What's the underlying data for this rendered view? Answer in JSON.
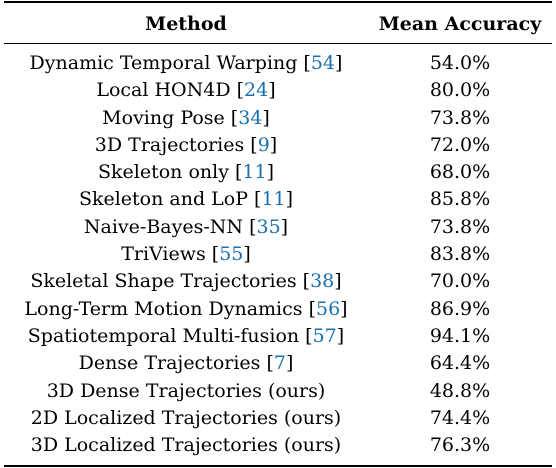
{
  "table": {
    "headers": {
      "method": "Method",
      "accuracy": "Mean Accuracy"
    },
    "rows": [
      {
        "method": "Dynamic Temporal Warping",
        "ref": "54",
        "accuracy": "54.0%"
      },
      {
        "method": "Local HON4D",
        "ref": "24",
        "accuracy": "80.0%"
      },
      {
        "method": "Moving Pose",
        "ref": "34",
        "accuracy": "73.8%"
      },
      {
        "method": "3D Trajectories",
        "ref": "9",
        "accuracy": "72.0%"
      },
      {
        "method": "Skeleton only",
        "ref": "11",
        "accuracy": "68.0%"
      },
      {
        "method": "Skeleton and LoP",
        "ref": "11",
        "accuracy": "85.8%"
      },
      {
        "method": "Naive-Bayes-NN",
        "ref": "35",
        "accuracy": "73.8%"
      },
      {
        "method": "TriViews",
        "ref": "55",
        "accuracy": "83.8%"
      },
      {
        "method": "Skeletal Shape Trajectories",
        "ref": "38",
        "accuracy": "70.0%"
      },
      {
        "method": "Long-Term Motion Dynamics",
        "ref": "56",
        "accuracy": "86.9%"
      },
      {
        "method": "Spatiotemporal Multi-fusion",
        "ref": "57",
        "accuracy": "94.1%"
      },
      {
        "method": "Dense Trajectories",
        "ref": "7",
        "accuracy": "64.4%"
      },
      {
        "method": "3D Dense Trajectories (ours)",
        "ref": "",
        "accuracy": "48.8%"
      },
      {
        "method": "2D Localized Trajectories (ours)",
        "ref": "",
        "accuracy": "74.4%"
      },
      {
        "method": "3D Localized Trajectories (ours)",
        "ref": "",
        "accuracy": "76.3%"
      }
    ]
  },
  "colors": {
    "citation": "#1a6fb0",
    "text": "#000000",
    "background": "#ffffff"
  }
}
